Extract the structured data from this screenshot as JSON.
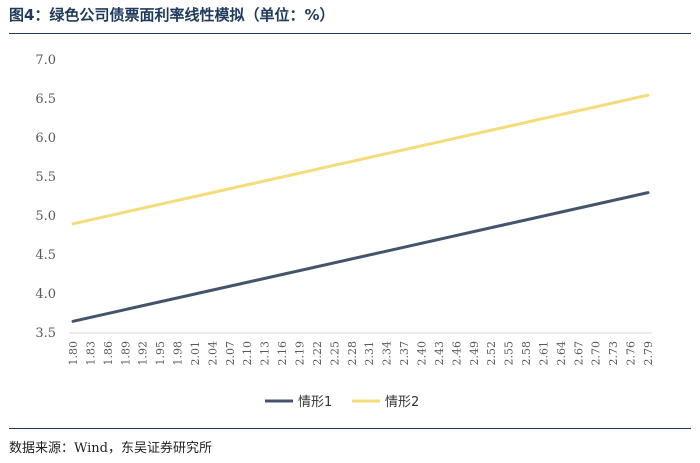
{
  "figure": {
    "title": "图4：绿色公司债票面利率线性模拟（单位：%）",
    "source": "数据来源：Wind，东吴证券研究所"
  },
  "chart_data": {
    "type": "line",
    "title": "绿色公司债票面利率线性模拟（单位：%）",
    "xlabel": "",
    "ylabel": "",
    "ylim": [
      3.5,
      7.0
    ],
    "yticks": [
      "3.5",
      "4.0",
      "4.5",
      "5.0",
      "5.5",
      "6.0",
      "6.5",
      "7.0"
    ],
    "categories": [
      "1.80",
      "1.83",
      "1.86",
      "1.89",
      "1.92",
      "1.95",
      "1.98",
      "2.01",
      "2.04",
      "2.07",
      "2.10",
      "2.13",
      "2.16",
      "2.19",
      "2.22",
      "2.25",
      "2.28",
      "2.31",
      "2.34",
      "2.37",
      "2.40",
      "2.43",
      "2.46",
      "2.49",
      "2.52",
      "2.55",
      "2.58",
      "2.61",
      "2.64",
      "2.67",
      "2.70",
      "2.73",
      "2.76",
      "2.79"
    ],
    "x_tick_labels": [
      "1.80",
      "1.83",
      "1.86",
      "1.89",
      "1.92",
      "1.95",
      "1.98",
      "2.01",
      "2.04",
      "2.07",
      "2.10",
      "2.13",
      "2.16",
      "2.19",
      "2.22",
      "2.25",
      "2.28",
      "2.31",
      "2.34",
      "2.37",
      "2.40",
      "2.43",
      "2.46",
      "2.49",
      "2.52",
      "2.55",
      "2.58",
      "2.61",
      "2.64",
      "2.67",
      "2.70",
      "2.73",
      "2.76",
      "2.79"
    ],
    "grid": false,
    "legend_position": "bottom-center",
    "series": [
      {
        "name": "情形1",
        "color": "#44546a",
        "start": 3.65,
        "end": 5.3
      },
      {
        "name": "情形2",
        "color": "#f5dc7a",
        "start": 4.9,
        "end": 6.55
      }
    ]
  }
}
